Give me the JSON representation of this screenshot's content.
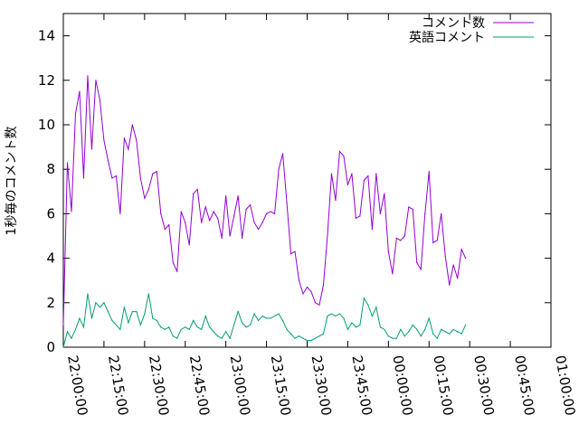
{
  "chart_data": {
    "type": "line",
    "title": "",
    "xlabel": "",
    "ylabel": "1秒毎のコメント数",
    "x_ticks": [
      "22:00:00",
      "22:15:00",
      "22:30:00",
      "22:45:00",
      "23:00:00",
      "23:15:00",
      "23:30:00",
      "23:45:00",
      "00:00:00",
      "00:15:00",
      "00:30:00",
      "00:45:00",
      "01:00:00"
    ],
    "y_ticks": [
      "0",
      "2",
      "4",
      "6",
      "8",
      "10",
      "12",
      "14"
    ],
    "xlim_minutes": [
      0,
      180
    ],
    "ylim": [
      0,
      15
    ],
    "grid": false,
    "legend_position": "top-right",
    "x_step_minutes": 1.5,
    "series": [
      {
        "name": "コメント数",
        "color": "#9400d3",
        "values": [
          1.0,
          8.3,
          6.1,
          10.5,
          11.5,
          7.6,
          12.2,
          8.9,
          12.0,
          11.1,
          9.3,
          8.4,
          7.6,
          7.7,
          6.0,
          9.4,
          8.9,
          10.0,
          9.3,
          7.6,
          6.7,
          7.1,
          7.8,
          7.9,
          6.0,
          5.3,
          5.5,
          3.8,
          3.4,
          6.1,
          5.6,
          4.6,
          6.9,
          7.1,
          5.6,
          6.3,
          5.7,
          6.1,
          5.8,
          4.9,
          6.8,
          5.0,
          5.9,
          6.8,
          4.9,
          6.2,
          6.4,
          5.6,
          5.3,
          5.6,
          6.0,
          6.1,
          6.0,
          8.0,
          8.7,
          6.5,
          4.2,
          4.3,
          3.0,
          2.4,
          2.7,
          2.5,
          2.0,
          1.9,
          2.8,
          5.0,
          7.8,
          6.6,
          8.8,
          8.6,
          7.3,
          7.8,
          5.8,
          5.9,
          7.5,
          7.7,
          5.3,
          7.8,
          6.0,
          6.9,
          4.3,
          3.3,
          4.9,
          4.8,
          5.0,
          6.3,
          6.2,
          3.8,
          3.5,
          6.0,
          7.9,
          4.7,
          4.8,
          6.0,
          4.1,
          2.8,
          3.7,
          3.1,
          4.4,
          4.0
        ]
      },
      {
        "name": "英語コメント",
        "color": "#009e73",
        "values": [
          0.0,
          0.7,
          0.4,
          0.8,
          1.3,
          0.9,
          2.4,
          1.3,
          2.0,
          1.8,
          2.0,
          1.6,
          1.2,
          1.0,
          0.8,
          1.8,
          1.1,
          1.6,
          1.6,
          1.0,
          1.5,
          2.4,
          1.3,
          1.2,
          0.9,
          0.8,
          0.9,
          0.5,
          0.4,
          0.8,
          0.9,
          0.8,
          1.2,
          0.9,
          0.8,
          1.4,
          0.9,
          0.7,
          0.5,
          0.4,
          0.7,
          0.4,
          1.0,
          1.6,
          1.1,
          0.9,
          1.0,
          1.5,
          1.2,
          1.4,
          1.3,
          1.3,
          1.4,
          1.5,
          1.2,
          0.8,
          0.6,
          0.4,
          0.5,
          0.4,
          0.3,
          0.3,
          0.4,
          0.5,
          0.6,
          1.4,
          1.5,
          1.4,
          1.5,
          1.3,
          0.8,
          1.1,
          0.9,
          1.0,
          2.2,
          1.9,
          1.4,
          1.8,
          0.9,
          0.8,
          0.5,
          0.4,
          0.4,
          0.8,
          0.5,
          0.7,
          1.0,
          0.8,
          0.5,
          0.8,
          1.3,
          0.6,
          0.4,
          0.8,
          0.7,
          0.6,
          0.8,
          0.7,
          0.6,
          1.0
        ]
      }
    ]
  }
}
